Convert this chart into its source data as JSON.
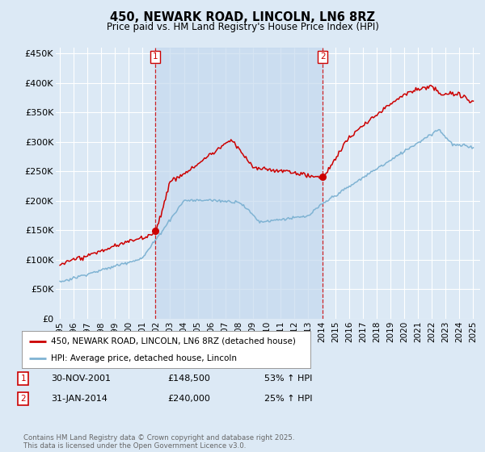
{
  "title": "450, NEWARK ROAD, LINCOLN, LN6 8RZ",
  "subtitle": "Price paid vs. HM Land Registry's House Price Index (HPI)",
  "bg_color": "#dce9f5",
  "plot_bg_color": "#dce9f5",
  "shade_color": "#c5d9ee",
  "ylim": [
    0,
    460000
  ],
  "yticks": [
    0,
    50000,
    100000,
    150000,
    200000,
    250000,
    300000,
    350000,
    400000,
    450000
  ],
  "ytick_labels": [
    "£0",
    "£50K",
    "£100K",
    "£150K",
    "£200K",
    "£250K",
    "£300K",
    "£350K",
    "£400K",
    "£450K"
  ],
  "xlim_start": 1994.7,
  "xlim_end": 2025.5,
  "xtick_years": [
    1995,
    1996,
    1997,
    1998,
    1999,
    2000,
    2001,
    2002,
    2003,
    2004,
    2005,
    2006,
    2007,
    2008,
    2009,
    2010,
    2011,
    2012,
    2013,
    2014,
    2015,
    2016,
    2017,
    2018,
    2019,
    2020,
    2021,
    2022,
    2023,
    2024,
    2025
  ],
  "hpi_line_color": "#7fb3d3",
  "price_line_color": "#cc0000",
  "vline_color": "#cc0000",
  "vline_alpha": 0.85,
  "marker1_x": 2001.917,
  "marker1_y": 148500,
  "marker2_x": 2014.083,
  "marker2_y": 240000,
  "legend_label_red": "450, NEWARK ROAD, LINCOLN, LN6 8RZ (detached house)",
  "legend_label_blue": "HPI: Average price, detached house, Lincoln",
  "annotation1_date": "30-NOV-2001",
  "annotation1_price": "£148,500",
  "annotation1_hpi": "53% ↑ HPI",
  "annotation2_date": "31-JAN-2014",
  "annotation2_price": "£240,000",
  "annotation2_hpi": "25% ↑ HPI",
  "footer": "Contains HM Land Registry data © Crown copyright and database right 2025.\nThis data is licensed under the Open Government Licence v3.0.",
  "grid_color": "#ffffff"
}
